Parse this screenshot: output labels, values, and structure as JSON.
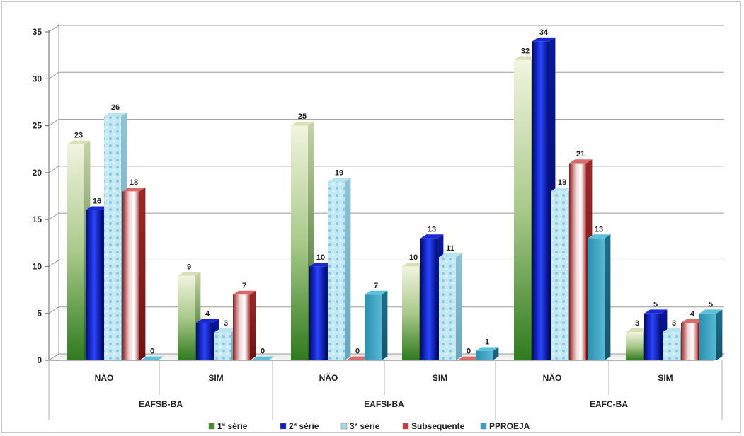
{
  "chart_data": {
    "type": "bar",
    "style": "3d-clustered-column",
    "ylim": [
      0,
      35
    ],
    "yticks": [
      "0",
      "5",
      "10",
      "15",
      "20",
      "25",
      "30",
      "35"
    ],
    "categories": [
      "NÃO",
      "SIM",
      "NÃO",
      "SIM",
      "NÃO",
      "SIM"
    ],
    "groups": [
      "EAFSB-BA",
      "EAFSI-BA",
      "EAFC-BA"
    ],
    "grid": true,
    "legend_position": "bottom",
    "series": [
      {
        "name": "1ª série",
        "color": "#4a8a2a",
        "values": [
          23,
          9,
          25,
          10,
          32,
          3
        ]
      },
      {
        "name": "2ª série",
        "color": "#1020c0",
        "values": [
          16,
          4,
          10,
          13,
          34,
          5
        ]
      },
      {
        "name": "3ª série",
        "color": "#a8dcea",
        "values": [
          26,
          3,
          19,
          11,
          18,
          3
        ]
      },
      {
        "name": "Subsequente",
        "color": "#c04040",
        "values": [
          18,
          7,
          0,
          0,
          21,
          4
        ]
      },
      {
        "name": "PPROEJA",
        "color": "#3aa0c0",
        "values": [
          0,
          0,
          7,
          1,
          13,
          5
        ]
      }
    ]
  }
}
